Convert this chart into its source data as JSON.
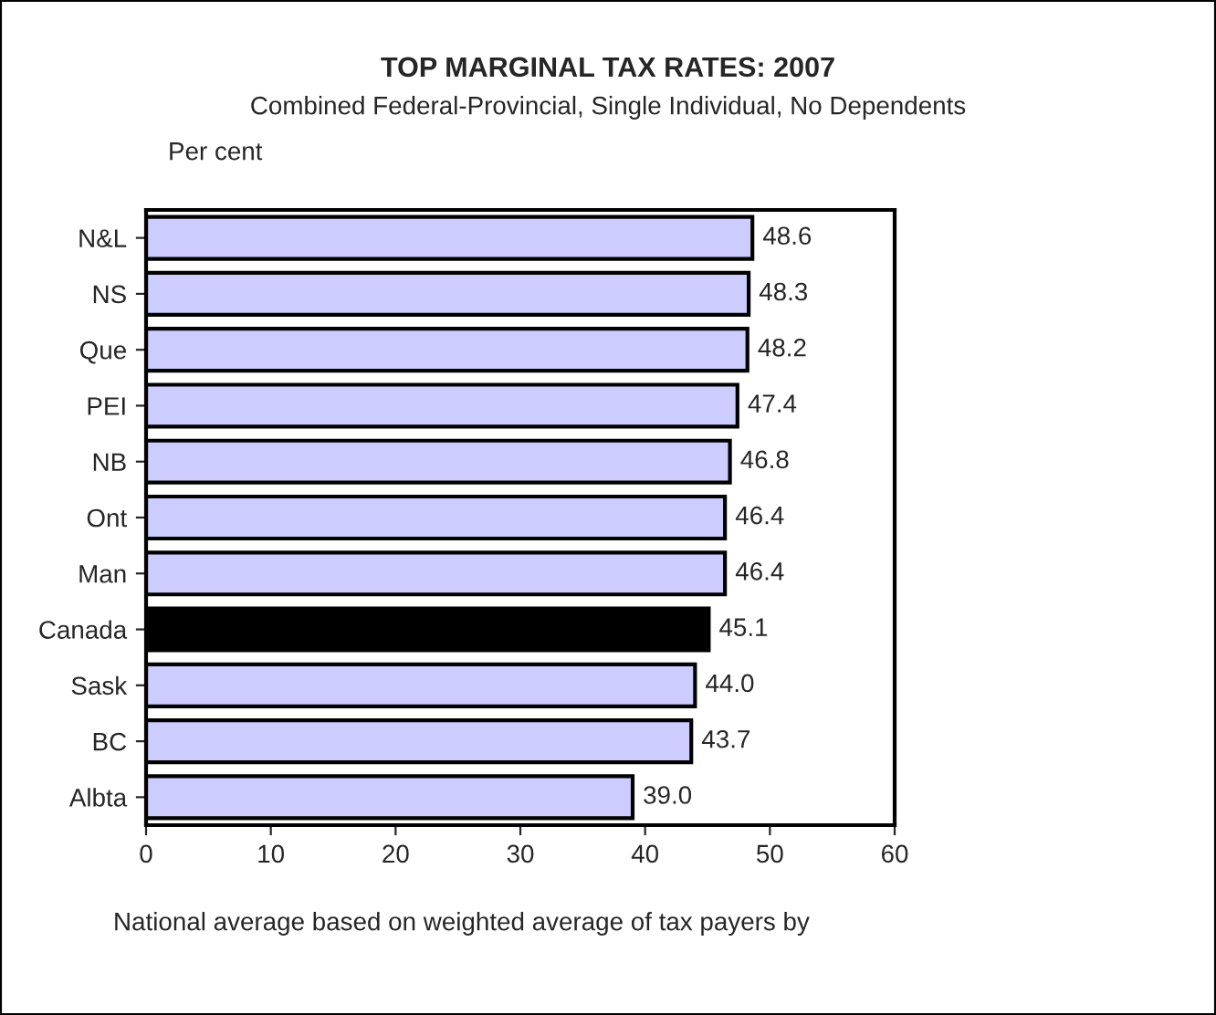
{
  "chart_data": {
    "type": "bar",
    "orientation": "horizontal",
    "title": "TOP MARGINAL TAX RATES: 2007",
    "subtitle": "Combined Federal-Provincial, Single Individual, No Dependents",
    "categories": [
      "N&L",
      "NS",
      "Que",
      "PEI",
      "NB",
      "Ont",
      "Man",
      "Canada",
      "Sask",
      "BC",
      "Albta"
    ],
    "values": [
      48.6,
      48.3,
      48.2,
      47.4,
      46.8,
      46.4,
      46.4,
      45.1,
      44.0,
      43.7,
      39.0
    ],
    "colors": [
      "#ccccff",
      "#ccccff",
      "#ccccff",
      "#ccccff",
      "#ccccff",
      "#ccccff",
      "#ccccff",
      "#000000",
      "#ccccff",
      "#ccccff",
      "#ccccff"
    ],
    "value_labels": [
      "48.6",
      "48.3",
      "48.2",
      "47.4",
      "46.8",
      "46.4",
      "46.4",
      "45.1",
      "44.0",
      "43.7",
      "39.0"
    ],
    "xlim": [
      0,
      60
    ],
    "xticks": [
      0,
      10,
      20,
      30,
      40,
      50,
      60
    ],
    "grid": false,
    "legend": false,
    "annotations": [
      "Per cent",
      "National average based on weighted average of tax payers by"
    ]
  }
}
